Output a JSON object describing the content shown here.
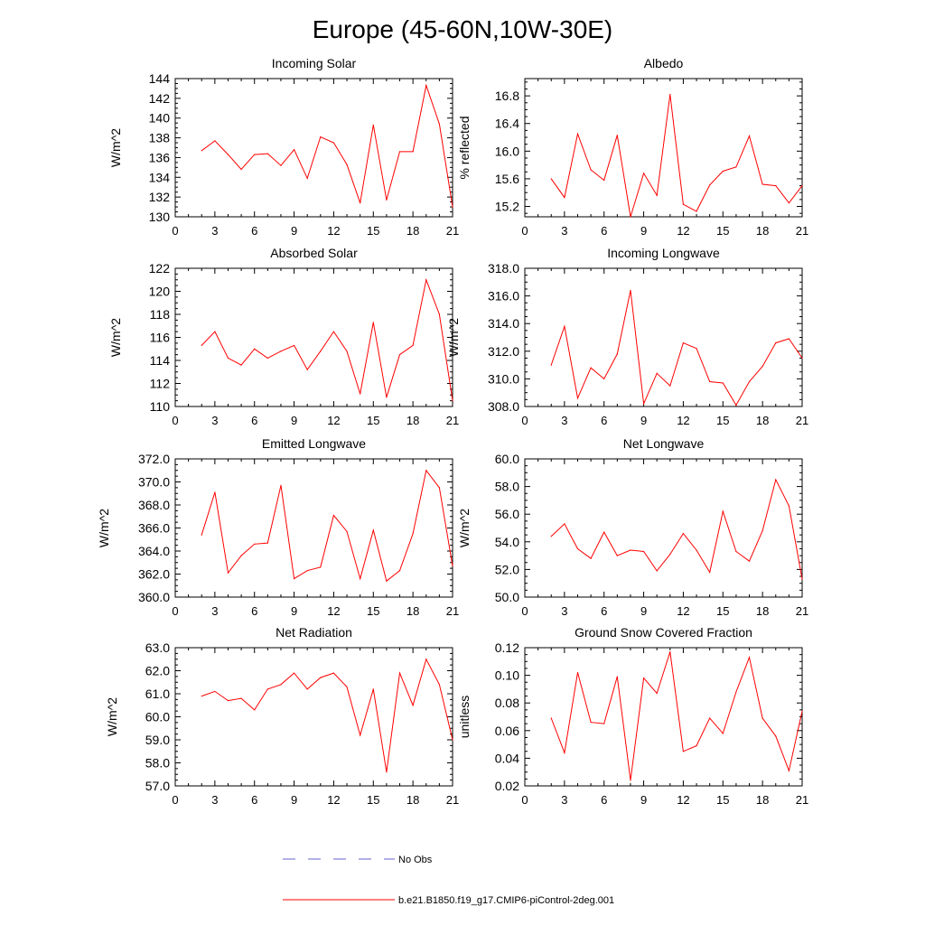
{
  "figure": {
    "title": "Europe (45-60N,10W-30E)"
  },
  "legend": {
    "entries": [
      {
        "label": "No Obs",
        "color": "#6666cc",
        "style": "dashed"
      },
      {
        "label": "b.e21.B1850.f19_g17.CMIP6-piControl-2deg.001",
        "color": "#ff0000",
        "style": "solid"
      }
    ]
  },
  "chart_data": [
    {
      "type": "line",
      "title": "Incoming Solar",
      "ylabel": "W/m^2",
      "xlim": [
        0,
        21
      ],
      "ylim": [
        130,
        144
      ],
      "xticks": [
        "0",
        "3",
        "6",
        "9",
        "12",
        "15",
        "18",
        "21"
      ],
      "yticks": [
        "130",
        "132",
        "134",
        "136",
        "138",
        "140",
        "142",
        "144"
      ],
      "series": [
        {
          "color": "#ff0000",
          "x": [
            2,
            3,
            4,
            5,
            6,
            7,
            8,
            9,
            10,
            11,
            12,
            13,
            14,
            15,
            16,
            17,
            18,
            19,
            20,
            21
          ],
          "y": [
            136.7,
            137.7,
            136.3,
            134.8,
            136.3,
            136.4,
            135.2,
            136.8,
            133.9,
            138.1,
            137.5,
            135.3,
            131.4,
            139.3,
            131.7,
            136.6,
            136.6,
            143.3,
            139.4,
            131.0
          ]
        }
      ]
    },
    {
      "type": "line",
      "title": "Albedo",
      "ylabel": "% reflected",
      "xlim": [
        0,
        21
      ],
      "ylim": [
        15.05,
        17.05
      ],
      "xticks": [
        "0",
        "3",
        "6",
        "9",
        "12",
        "15",
        "18",
        "21"
      ],
      "yticks": [
        "15.2",
        "15.6",
        "16.0",
        "16.4",
        "16.8"
      ],
      "series": [
        {
          "color": "#ff0000",
          "x": [
            2,
            3,
            4,
            5,
            6,
            7,
            8,
            9,
            10,
            11,
            12,
            13,
            14,
            15,
            16,
            17,
            18,
            19,
            20,
            21
          ],
          "y": [
            15.6,
            15.33,
            16.25,
            15.73,
            15.58,
            16.23,
            15.05,
            15.68,
            15.36,
            16.82,
            15.23,
            15.13,
            15.51,
            15.71,
            15.77,
            16.22,
            15.52,
            15.5,
            15.25,
            15.5
          ]
        }
      ]
    },
    {
      "type": "line",
      "title": "Absorbed Solar",
      "ylabel": "W/m^2",
      "xlim": [
        0,
        21
      ],
      "ylim": [
        110,
        122
      ],
      "xticks": [
        "0",
        "3",
        "6",
        "9",
        "12",
        "15",
        "18",
        "21"
      ],
      "yticks": [
        "110",
        "112",
        "114",
        "116",
        "118",
        "120",
        "122"
      ],
      "series": [
        {
          "color": "#ff0000",
          "x": [
            2,
            3,
            4,
            5,
            6,
            7,
            8,
            9,
            10,
            11,
            12,
            13,
            14,
            15,
            16,
            17,
            18,
            19,
            20,
            21
          ],
          "y": [
            115.3,
            116.5,
            114.2,
            113.6,
            115.0,
            114.2,
            114.8,
            115.3,
            113.2,
            114.8,
            116.5,
            114.8,
            111.1,
            117.3,
            110.8,
            114.5,
            115.3,
            121.0,
            118.0,
            110.5
          ]
        }
      ]
    },
    {
      "type": "line",
      "title": "Incoming Longwave",
      "ylabel": "W/m^2",
      "xlim": [
        0,
        21
      ],
      "ylim": [
        308.0,
        318.0
      ],
      "xticks": [
        "0",
        "3",
        "6",
        "9",
        "12",
        "15",
        "18",
        "21"
      ],
      "yticks": [
        "308.0",
        "310.0",
        "312.0",
        "314.0",
        "316.0",
        "318.0"
      ],
      "series": [
        {
          "color": "#ff0000",
          "x": [
            2,
            3,
            4,
            5,
            6,
            7,
            8,
            9,
            10,
            11,
            12,
            13,
            14,
            15,
            16,
            17,
            18,
            19,
            20,
            21
          ],
          "y": [
            311.0,
            313.8,
            308.6,
            310.8,
            310.0,
            311.8,
            316.4,
            308.2,
            310.4,
            309.5,
            312.6,
            312.2,
            309.8,
            309.7,
            308.1,
            309.8,
            310.9,
            312.6,
            312.9,
            311.5
          ]
        }
      ]
    },
    {
      "type": "line",
      "title": "Emitted Longwave",
      "ylabel": "W/m^2",
      "xlim": [
        0,
        21
      ],
      "ylim": [
        360.0,
        372.0
      ],
      "xticks": [
        "0",
        "3",
        "6",
        "9",
        "12",
        "15",
        "18",
        "21"
      ],
      "yticks": [
        "360.0",
        "362.0",
        "364.0",
        "366.0",
        "368.0",
        "370.0",
        "372.0"
      ],
      "series": [
        {
          "color": "#ff0000",
          "x": [
            2,
            3,
            4,
            5,
            6,
            7,
            8,
            9,
            10,
            11,
            12,
            13,
            14,
            15,
            16,
            17,
            18,
            19,
            20,
            21
          ],
          "y": [
            365.4,
            369.1,
            362.1,
            363.6,
            364.6,
            364.7,
            369.7,
            361.6,
            362.3,
            362.6,
            367.1,
            365.7,
            361.6,
            365.8,
            361.4,
            362.3,
            365.5,
            371.0,
            369.5,
            362.7
          ]
        }
      ]
    },
    {
      "type": "line",
      "title": "Net Longwave",
      "ylabel": "W/m^2",
      "xlim": [
        0,
        21
      ],
      "ylim": [
        50.0,
        60.0
      ],
      "xticks": [
        "0",
        "3",
        "6",
        "9",
        "12",
        "15",
        "18",
        "21"
      ],
      "yticks": [
        "50.0",
        "52.0",
        "54.0",
        "56.0",
        "58.0",
        "60.0"
      ],
      "series": [
        {
          "color": "#ff0000",
          "x": [
            2,
            3,
            4,
            5,
            6,
            7,
            8,
            9,
            10,
            11,
            12,
            13,
            14,
            15,
            16,
            17,
            18,
            19,
            20,
            21
          ],
          "y": [
            54.4,
            55.3,
            53.5,
            52.8,
            54.7,
            53.0,
            53.4,
            53.3,
            51.9,
            53.1,
            54.6,
            53.4,
            51.8,
            56.2,
            53.3,
            52.6,
            54.8,
            58.5,
            56.6,
            51.3
          ]
        }
      ]
    },
    {
      "type": "line",
      "title": "Net Radiation",
      "ylabel": "W/m^2",
      "xlim": [
        0,
        21
      ],
      "ylim": [
        57.0,
        63.0
      ],
      "xticks": [
        "0",
        "3",
        "6",
        "9",
        "12",
        "15",
        "18",
        "21"
      ],
      "yticks": [
        "57.0",
        "58.0",
        "59.0",
        "60.0",
        "61.0",
        "62.0",
        "63.0"
      ],
      "series": [
        {
          "color": "#ff0000",
          "x": [
            2,
            3,
            4,
            5,
            6,
            7,
            8,
            9,
            10,
            11,
            12,
            13,
            14,
            15,
            16,
            17,
            18,
            19,
            20,
            21
          ],
          "y": [
            60.9,
            61.1,
            60.7,
            60.8,
            60.3,
            61.2,
            61.4,
            61.9,
            61.2,
            61.7,
            61.9,
            61.3,
            59.2,
            61.2,
            57.6,
            61.9,
            60.5,
            62.5,
            61.4,
            59.0
          ]
        }
      ]
    },
    {
      "type": "line",
      "title": "Ground Snow Covered Fraction",
      "ylabel": "unitless",
      "xlim": [
        0,
        21
      ],
      "ylim": [
        0.02,
        0.12
      ],
      "xticks": [
        "0",
        "3",
        "6",
        "9",
        "12",
        "15",
        "18",
        "21"
      ],
      "yticks": [
        "0.02",
        "0.04",
        "0.06",
        "0.08",
        "0.10",
        "0.12"
      ],
      "series": [
        {
          "color": "#ff0000",
          "x": [
            2,
            3,
            4,
            5,
            6,
            7,
            8,
            9,
            10,
            11,
            12,
            13,
            14,
            15,
            16,
            17,
            18,
            19,
            20,
            21
          ],
          "y": [
            0.069,
            0.044,
            0.102,
            0.066,
            0.065,
            0.099,
            0.024,
            0.098,
            0.087,
            0.117,
            0.045,
            0.049,
            0.069,
            0.058,
            0.088,
            0.113,
            0.069,
            0.056,
            0.031,
            0.074
          ]
        }
      ]
    }
  ]
}
